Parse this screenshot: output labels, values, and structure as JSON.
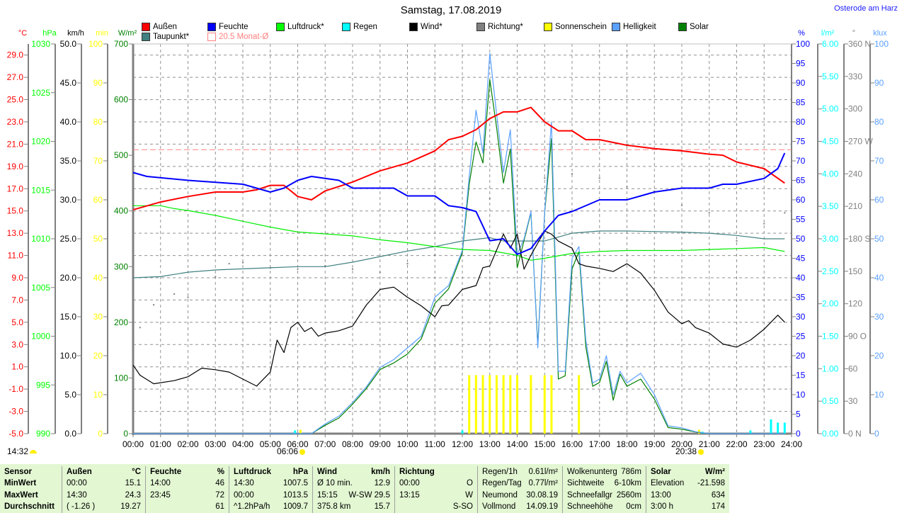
{
  "header": {
    "title": "Samstag, 17.08.2019",
    "location": "Osterode am Harz"
  },
  "legend": [
    {
      "label": "Außen",
      "color": "#ff0000"
    },
    {
      "label": "Feuchte",
      "color": "#0000ff"
    },
    {
      "label": "Luftdruck*",
      "color": "#00ff00"
    },
    {
      "label": "Regen",
      "color": "#00ffff"
    },
    {
      "label": "Wind*",
      "color": "#000000"
    },
    {
      "label": "Richtung*",
      "color": "#808080"
    },
    {
      "label": "Sonnenschein",
      "color": "#ffff00"
    },
    {
      "label": "Helligkeit",
      "color": "#5aa0ff"
    },
    {
      "label": "Solar",
      "color": "#008000"
    },
    {
      "label": "Taupunkt*",
      "color": "#408080"
    },
    {
      "label": "20.5 Monat-Ø",
      "color": "#ff8080"
    }
  ],
  "footer": {
    "moon_time": "14:32",
    "sunrise": "06:06",
    "sunset": "20:38"
  },
  "chart_data": {
    "type": "line",
    "x_unit": "hours",
    "xlim": [
      0,
      24
    ],
    "x_tick_labels": [
      "00:00",
      "01:00",
      "02:00",
      "03:00",
      "04:00",
      "05:00",
      "06:00",
      "07:00",
      "08:00",
      "09:00",
      "10:00",
      "11:00",
      "12:00",
      "13:00",
      "14:00",
      "15:00",
      "16:00",
      "17:00",
      "18:00",
      "19:00",
      "20:00",
      "21:00",
      "22:00",
      "23:00",
      "24:00"
    ],
    "grid": true,
    "axes": {
      "temp": {
        "unit": "°C",
        "min": -5,
        "max": 30,
        "tick_start": -5,
        "step": 2,
        "decimals": 1,
        "color": "#ff0000"
      },
      "press": {
        "unit": "hPa",
        "min": 990,
        "max": 1030,
        "tick_start": 990,
        "step": 5,
        "decimals": 0,
        "color": "#00ff00"
      },
      "wind": {
        "unit": "km/h",
        "min": 0,
        "max": 50,
        "tick_start": 0,
        "step": 5,
        "decimals": 1,
        "color": "#000000"
      },
      "sun": {
        "unit": "min",
        "min": 0,
        "max": 100,
        "tick_start": 0,
        "step": 10,
        "decimals": 0,
        "color": "#ffff00"
      },
      "solar": {
        "unit": "W/m²",
        "min": 0,
        "max": 700,
        "tick_start": 0,
        "step": 100,
        "decimals": 0,
        "color": "#008000"
      },
      "hum": {
        "unit": "%",
        "min": 0,
        "max": 100,
        "tick_start": 0,
        "step": 5,
        "decimals": 0,
        "color": "#0000ff"
      },
      "rain": {
        "unit": "l/m²",
        "min": 0,
        "max": 6,
        "tick_start": 0,
        "step": 0.5,
        "decimals": 2,
        "color": "#00ffff"
      },
      "dir": {
        "unit": "°",
        "min": 0,
        "max": 360,
        "tick_start": 0,
        "step": 30,
        "decimals": 0,
        "color": "#808080",
        "direction_labels": {
          "0": "N",
          "90": "O",
          "180": "S",
          "270": "W",
          "360": "N"
        }
      },
      "lux": {
        "unit": "klux",
        "min": 0,
        "max": 100,
        "tick_start": 0,
        "step": 10,
        "decimals": 0,
        "color": "#5aa0ff"
      }
    },
    "reference_line": {
      "name": "Monat-Ø",
      "axis": "temp",
      "value": 20.5,
      "color": "#ff8080"
    },
    "series": [
      {
        "name": "Solar",
        "axis": "solar",
        "kind": "line",
        "color": "#008000",
        "x": [
          0,
          6.5,
          7,
          7.5,
          8,
          8.5,
          9,
          9.5,
          10,
          10.5,
          11,
          11.5,
          12,
          12.25,
          12.5,
          12.75,
          13,
          13.25,
          13.5,
          13.75,
          14,
          14.25,
          14.5,
          14.75,
          15,
          15.25,
          15.5,
          15.75,
          16,
          16.25,
          16.5,
          16.75,
          17,
          17.25,
          17.5,
          17.75,
          18,
          18.5,
          19,
          19.5,
          20,
          20.5,
          21,
          23.75
        ],
        "y": [
          0,
          0,
          15,
          28,
          53,
          81,
          115,
          127,
          143,
          170,
          234,
          260,
          325,
          448,
          524,
          486,
          636,
          550,
          450,
          511,
          298,
          347,
          397,
          159,
          397,
          530,
          98,
          104,
          296,
          327,
          156,
          85,
          92,
          130,
          60,
          107,
          85,
          98,
          62,
          11,
          8,
          3,
          0,
          0
        ]
      },
      {
        "name": "Helligkeit",
        "axis": "lux",
        "kind": "line",
        "color": "#5aa0ff",
        "x": [
          0,
          6.5,
          7,
          7.5,
          8,
          8.5,
          9,
          9.5,
          10,
          10.5,
          11,
          11.5,
          12,
          12.25,
          12.5,
          12.75,
          13,
          13.25,
          13.5,
          13.75,
          14,
          14.25,
          14.5,
          14.75,
          15,
          15.25,
          15.5,
          15.75,
          16,
          16.25,
          16.5,
          16.75,
          17,
          17.25,
          17.5,
          17.75,
          18,
          18.5,
          19,
          19.5,
          20,
          20.5,
          21,
          23.75
        ],
        "y": [
          0,
          0,
          2.5,
          4.5,
          8,
          12,
          17,
          19,
          22,
          25,
          35,
          38,
          47,
          66,
          83,
          72,
          97.6,
          82,
          67,
          78,
          46,
          50,
          57,
          22,
          57,
          80,
          16,
          16,
          45,
          48,
          24,
          13,
          14,
          20,
          10,
          16,
          13,
          15.5,
          10,
          2,
          1.5,
          0.5,
          0,
          0
        ]
      },
      {
        "name": "Taupunkt",
        "axis": "temp",
        "kind": "line",
        "color": "#408080",
        "x": [
          0,
          1,
          2,
          3,
          4,
          5,
          6,
          7,
          8,
          9,
          10,
          11,
          12,
          13,
          13.5,
          14,
          15,
          16,
          17,
          18,
          20,
          21,
          22,
          23,
          23.75
        ],
        "y": [
          9.0,
          9.1,
          9.5,
          9.7,
          9.8,
          9.9,
          10.0,
          10.0,
          10.4,
          10.9,
          11.4,
          11.8,
          12.3,
          12.6,
          12.3,
          12.3,
          12.3,
          13.0,
          13.2,
          13.2,
          13.1,
          13.0,
          12.8,
          12.5,
          12.5
        ]
      },
      {
        "name": "Luftdruck",
        "axis": "press",
        "kind": "line",
        "color": "#00ee00",
        "x": [
          0,
          1,
          1.5,
          2,
          3,
          4,
          5,
          6,
          7,
          8,
          9,
          10,
          11,
          12,
          13,
          14,
          14.5,
          15,
          16,
          17,
          18,
          20,
          22,
          23,
          23.75
        ],
        "y": [
          1013.4,
          1013.4,
          1013.1,
          1012.9,
          1012.4,
          1011.8,
          1011.2,
          1010.7,
          1010.5,
          1010.3,
          1009.9,
          1009.6,
          1009.2,
          1008.9,
          1008.8,
          1008.3,
          1007.8,
          1008.0,
          1008.5,
          1008.7,
          1008.8,
          1008.8,
          1009.0,
          1009.1,
          1008.7
        ]
      },
      {
        "name": "Wind",
        "axis": "wind",
        "kind": "line",
        "color": "#000000",
        "x": [
          0,
          0.25,
          0.75,
          1.5,
          2,
          2.5,
          3,
          3.5,
          4,
          4.5,
          5,
          5.25,
          5.5,
          5.75,
          6,
          6.25,
          6.5,
          6.75,
          7,
          7.5,
          8,
          8.5,
          9,
          9.5,
          10,
          10.5,
          11,
          11.25,
          11.5,
          12,
          12.5,
          12.75,
          13,
          13.5,
          13.75,
          14,
          14.25,
          14.5,
          15,
          15.25,
          15.5,
          16,
          16.25,
          16.5,
          17,
          17.5,
          18,
          18.5,
          19,
          19.5,
          20,
          20.25,
          20.5,
          21,
          21.5,
          22,
          22.5,
          23,
          23.5,
          23.75
        ],
        "y": [
          8.8,
          7.5,
          6.4,
          6.8,
          7.3,
          8.4,
          8.2,
          7.9,
          7.0,
          6.1,
          7.9,
          12.0,
          10.4,
          13.6,
          14.3,
          13.1,
          13.6,
          12.5,
          12.9,
          13.2,
          13.8,
          16.5,
          18.5,
          18.8,
          17.5,
          16.4,
          15.0,
          16.4,
          16.5,
          18.5,
          19.0,
          21.3,
          21.5,
          25.6,
          23.8,
          25.6,
          21.1,
          22.9,
          26.0,
          25.6,
          24.7,
          23.8,
          21.8,
          21.5,
          21.2,
          20.8,
          21.8,
          20.6,
          18.4,
          15.6,
          14.1,
          14.5,
          13.6,
          12.9,
          11.5,
          11.1,
          12.0,
          13.4,
          15.2,
          14.3
        ]
      },
      {
        "name": "Außen",
        "axis": "temp",
        "kind": "line",
        "color": "#ff0000",
        "width": 2,
        "x": [
          0,
          1,
          2,
          3,
          4,
          4.5,
          5,
          5.5,
          6,
          6.5,
          7,
          8,
          9,
          10,
          11,
          11.5,
          12,
          12.5,
          13,
          13.5,
          14,
          14.5,
          15,
          15.5,
          16,
          16.5,
          17,
          18,
          19,
          20,
          21,
          21.5,
          22,
          23,
          23.75
        ],
        "y": [
          15.1,
          15.8,
          16.3,
          16.7,
          16.7,
          16.9,
          17.3,
          17.3,
          16.3,
          16.0,
          16.8,
          17.6,
          18.6,
          19.3,
          20.4,
          21.4,
          21.7,
          22.3,
          23.3,
          23.9,
          23.9,
          24.3,
          23.0,
          22.2,
          22.2,
          21.4,
          21.4,
          20.9,
          20.6,
          20.4,
          20.1,
          20.0,
          19.4,
          18.8,
          17.5
        ]
      },
      {
        "name": "Feuchte",
        "axis": "hum",
        "kind": "line",
        "color": "#0000ff",
        "width": 2,
        "x": [
          0,
          0.5,
          2,
          4,
          5,
          5.5,
          6,
          6.5,
          7.5,
          8,
          9.5,
          10,
          11,
          11.5,
          12,
          12.5,
          13,
          13.5,
          14,
          14.5,
          15,
          15.5,
          16,
          17,
          18,
          18.5,
          19,
          20,
          21,
          21.5,
          22,
          23,
          23.5,
          23.75
        ],
        "y": [
          67,
          66,
          65,
          64,
          62,
          63,
          65,
          66,
          65,
          63,
          63,
          61,
          61,
          58.5,
          58,
          57,
          49.5,
          50,
          46,
          47.5,
          52,
          56,
          57,
          60,
          60,
          61,
          62,
          63,
          63,
          64,
          64,
          65.5,
          68,
          72
        ]
      }
    ],
    "direction_points": {
      "name": "Richtung",
      "axis": "dir",
      "color": "#808080",
      "x": [
        0.25,
        0.75,
        1.5,
        2,
        3,
        3.5,
        4,
        5,
        6,
        7,
        8,
        9,
        10,
        11,
        12,
        13,
        14,
        15,
        16,
        17,
        18,
        19,
        20,
        21,
        22,
        23,
        23.75
      ],
      "y": [
        98,
        119,
        129,
        126,
        145,
        157,
        158,
        153,
        152,
        155,
        152,
        149,
        157,
        165,
        171,
        217,
        229,
        236,
        240,
        236,
        228,
        224,
        211,
        204,
        178,
        194,
        204
      ]
    },
    "sunshine_bars": {
      "name": "Sonnenschein",
      "axis": "sun",
      "color": "#ffff00",
      "x": [
        6.1,
        12.25,
        12.5,
        12.75,
        13,
        13.25,
        13.5,
        13.75,
        14,
        14.5,
        15,
        15.25,
        16.25,
        20.63
      ],
      "y": [
        1,
        15,
        15,
        15,
        15,
        15,
        15,
        15,
        15,
        15,
        15,
        15,
        15,
        1
      ]
    },
    "rain_bars": {
      "name": "Regen",
      "axis": "rain",
      "color": "#00ffff",
      "x": [
        5.9,
        12,
        20.75,
        22.5,
        23.25,
        23.5,
        23.75
      ],
      "y": [
        0.05,
        0.05,
        0.03,
        0.05,
        0.22,
        0.17,
        0.17
      ]
    }
  },
  "table": {
    "sensor": [
      "Sensor",
      "MinWert",
      "MaxWert",
      "Durchschnitt"
    ],
    "sections": [
      {
        "rows": [
          [
            "Außen",
            "°C"
          ],
          [
            "00:00",
            "15.1"
          ],
          [
            "14:30",
            "24.3"
          ],
          [
            "( -1.26 )",
            "19.27"
          ]
        ],
        "header": true
      },
      {
        "rows": [
          [
            "Feuchte",
            "%"
          ],
          [
            "14:00",
            "46"
          ],
          [
            "23:45",
            "72"
          ],
          [
            "",
            "61"
          ]
        ],
        "header": true
      },
      {
        "rows": [
          [
            "Luftdruck",
            "hPa"
          ],
          [
            "14:30",
            "1007.5"
          ],
          [
            "00:00",
            "1013.5"
          ],
          [
            "^1.2hPa/h",
            "1009.7"
          ]
        ],
        "header": true
      },
      {
        "rows": [
          [
            "Wind",
            "km/h"
          ],
          [
            "Ø 10 min.",
            "12.9"
          ],
          [
            "15:15",
            "W-SW 29.5"
          ],
          [
            "375.8 km",
            "15.7"
          ]
        ],
        "header": true
      },
      {
        "rows": [
          [
            "Richtung",
            ""
          ],
          [
            "00:00",
            "O"
          ],
          [
            "13:15",
            "W"
          ],
          [
            "",
            "S-SO"
          ]
        ],
        "header": true
      },
      {
        "rows": [
          [
            "Regen/1h",
            "0.61l/m²"
          ],
          [
            "Regen/Tag",
            "0.77l/m²"
          ],
          [
            "Neumond",
            "30.08.19"
          ],
          [
            "Vollmond",
            "14.09.19"
          ]
        ],
        "header": false
      },
      {
        "rows": [
          [
            "Wolkenunterg",
            "786m"
          ],
          [
            "Sichtweite",
            "6-10km"
          ],
          [
            "Schneefallgr",
            "2560m"
          ],
          [
            "Schneehöhe",
            "0cm"
          ]
        ],
        "header": false
      },
      {
        "rows": [
          [
            "Solar",
            "W/m²"
          ],
          [
            "Elevation",
            "-21.598"
          ],
          [
            "13:00",
            "634"
          ],
          [
            "3:00 h",
            "174"
          ]
        ],
        "header": true
      }
    ]
  }
}
